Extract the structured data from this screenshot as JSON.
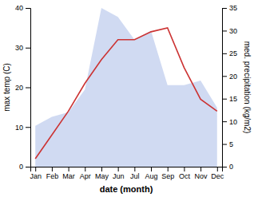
{
  "chart_data": {
    "type": "line",
    "xlabel": "date (month)",
    "ylabel": "max temp (C)",
    "y2label": "med. precipitation (kg/m2)",
    "categories": [
      "Jan",
      "Feb",
      "Mar",
      "Apr",
      "May",
      "Jun",
      "Jul",
      "Aug",
      "Sep",
      "Oct",
      "Nov",
      "Dec"
    ],
    "series": [
      {
        "type": "line",
        "color": "#cc3333",
        "values": [
          2,
          8,
          14,
          21,
          27,
          32,
          32,
          34,
          35,
          25,
          17,
          14
        ]
      },
      {
        "type": "area",
        "color": "#c8d4f0",
        "axis": "y2",
        "values": [
          9,
          11,
          12,
          17,
          35,
          33,
          28,
          30,
          18,
          18,
          19,
          13
        ]
      }
    ],
    "ylim": [
      0,
      40
    ],
    "yticks": [
      0,
      10,
      20,
      30,
      40
    ],
    "y2lim": [
      0,
      35
    ],
    "y2ticks": [
      0,
      5,
      10,
      15,
      20,
      25,
      30,
      35
    ],
    "grid": false
  }
}
